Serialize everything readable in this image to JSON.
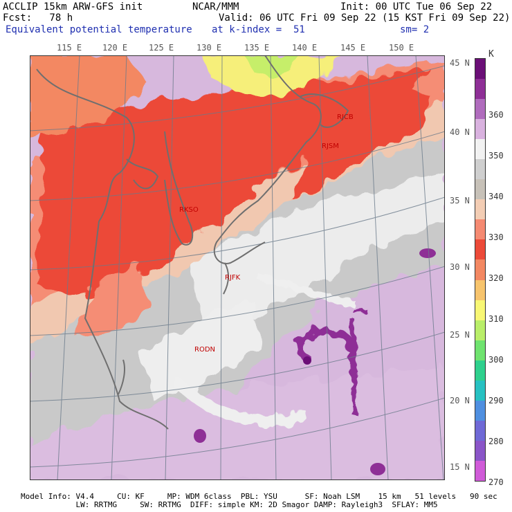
{
  "header": {
    "model_title": "ACCLIP 15km ARW-GFS init",
    "org": "NCAR/MMM",
    "init": "Init: 00 UTC Tue 06 Sep 22",
    "fcst": "Fcst:   78 h",
    "valid": "Valid: 06 UTC Fri 09 Sep 22 (15 KST Fri 09 Sep 22)",
    "field": "Equivalent potential temperature",
    "kindex": "at k-index =  51",
    "sm": "sm= 2"
  },
  "lon_labels": [
    "115 E",
    "120 E",
    "125 E",
    "130 E",
    "135 E",
    "140 E",
    "145 E",
    "150 E"
  ],
  "lat_labels": [
    "45 N",
    "40 N",
    "35 N",
    "30 N",
    "25 N",
    "20 N",
    "15 N"
  ],
  "stations": [
    "RJCB",
    "RJSM",
    "RKSO",
    "RJFK",
    "RODN"
  ],
  "colorbar": {
    "unit": "K",
    "labels": [
      "360",
      "350",
      "340",
      "330",
      "320",
      "310",
      "300",
      "290",
      "280",
      "270"
    ],
    "colors": [
      "#6b0f77",
      "#8e2f96",
      "#b06cbd",
      "#d9b2df",
      "#f2f2f2",
      "#cfcfcf",
      "#c7c1b8",
      "#f3cdb4",
      "#f58a72",
      "#ec4a39",
      "#f38862",
      "#f7c46d",
      "#f8f774",
      "#b9ee69",
      "#6fe36f",
      "#2ed08d",
      "#27c1c2",
      "#4f8fe0",
      "#6f69d6",
      "#8a55c8",
      "#d05bd8"
    ]
  },
  "footer": {
    "line1": "Model Info: V4.4     CU: KF     MP: WDM 6class  PBL: YSU      SF: Noah LSM    15 km   51 levels   90 sec",
    "line2": "            LW: RRTMG     SW: RRTMG  DIFF: simple KM: 2D Smagor DAMP: Rayleigh3  SFLAY: MM5"
  }
}
